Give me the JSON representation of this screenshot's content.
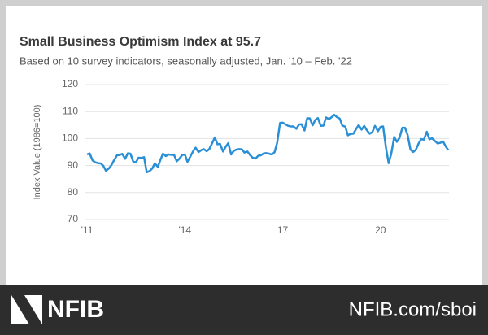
{
  "chart_data": {
    "type": "line",
    "title": "Small Business Optimism Index at 95.7",
    "subtitle": "Based on 10 survey indicators, seasonally adjusted, Jan. '10 – Feb. '22",
    "y_label": "Index Value (1986=100)",
    "color": "#2b8fd6",
    "grid": true,
    "xlim": [
      2011,
      2022.1
    ],
    "ylim": [
      70,
      120
    ],
    "yticks": [
      70,
      80,
      90,
      100,
      110,
      120
    ],
    "xticks": [
      {
        "value": 2011,
        "label": "'11"
      },
      {
        "value": 2014,
        "label": "'14"
      },
      {
        "value": 2017,
        "label": "17"
      },
      {
        "value": 2020,
        "label": "20"
      }
    ],
    "x": [
      2011,
      2011.08,
      2011.17,
      2011.25,
      2011.33,
      2011.42,
      2011.5,
      2011.58,
      2011.67,
      2011.75,
      2011.83,
      2011.92,
      2012,
      2012.08,
      2012.17,
      2012.25,
      2012.33,
      2012.42,
      2012.5,
      2012.58,
      2012.67,
      2012.75,
      2012.83,
      2012.92,
      2013,
      2013.08,
      2013.17,
      2013.25,
      2013.33,
      2013.42,
      2013.5,
      2013.58,
      2013.67,
      2013.75,
      2013.83,
      2013.92,
      2014,
      2014.08,
      2014.17,
      2014.25,
      2014.33,
      2014.42,
      2014.5,
      2014.58,
      2014.67,
      2014.75,
      2014.83,
      2014.92,
      2015,
      2015.08,
      2015.17,
      2015.25,
      2015.33,
      2015.42,
      2015.5,
      2015.58,
      2015.67,
      2015.75,
      2015.83,
      2015.92,
      2016,
      2016.08,
      2016.17,
      2016.25,
      2016.33,
      2016.42,
      2016.5,
      2016.58,
      2016.67,
      2016.75,
      2016.83,
      2016.92,
      2017,
      2017.08,
      2017.17,
      2017.25,
      2017.33,
      2017.42,
      2017.5,
      2017.58,
      2017.67,
      2017.75,
      2017.83,
      2017.92,
      2018,
      2018.08,
      2018.17,
      2018.25,
      2018.33,
      2018.42,
      2018.5,
      2018.58,
      2018.67,
      2018.75,
      2018.83,
      2018.92,
      2019,
      2019.08,
      2019.17,
      2019.25,
      2019.33,
      2019.42,
      2019.5,
      2019.58,
      2019.67,
      2019.75,
      2019.83,
      2019.92,
      2020,
      2020.08,
      2020.17,
      2020.25,
      2020.33,
      2020.42,
      2020.5,
      2020.58,
      2020.67,
      2020.75,
      2020.83,
      2020.92,
      2021,
      2021.08,
      2021.17,
      2021.25,
      2021.33,
      2021.42,
      2021.5,
      2021.58,
      2021.67,
      2021.75,
      2021.83,
      2021.92,
      2022,
      2022.08
    ],
    "values": [
      94.1,
      94.5,
      91.9,
      91.2,
      90.9,
      90.8,
      89.9,
      88.1,
      88.9,
      90.2,
      92.0,
      93.8,
      93.9,
      94.3,
      92.5,
      94.5,
      94.4,
      91.4,
      91.2,
      92.9,
      92.8,
      93.1,
      87.5,
      88.0,
      88.9,
      90.8,
      89.5,
      92.1,
      94.4,
      93.5,
      94.1,
      94.0,
      93.9,
      91.6,
      92.5,
      93.9,
      94.1,
      91.4,
      93.4,
      95.2,
      96.6,
      95.0,
      95.7,
      96.1,
      95.3,
      96.1,
      98.1,
      100.4,
      97.9,
      98.0,
      95.2,
      96.9,
      98.3,
      94.1,
      95.4,
      95.9,
      96.1,
      96.0,
      94.8,
      95.2,
      93.9,
      92.9,
      92.6,
      93.6,
      93.8,
      94.5,
      94.6,
      94.4,
      94.1,
      94.9,
      98.4,
      105.8,
      105.9,
      105.3,
      104.7,
      104.5,
      104.5,
      103.6,
      105.2,
      105.3,
      103.0,
      107.5,
      107.5,
      104.9,
      106.9,
      107.6,
      104.7,
      104.8,
      107.8,
      107.2,
      107.9,
      108.8,
      107.9,
      107.4,
      104.8,
      104.4,
      101.2,
      101.7,
      101.8,
      103.5,
      105.0,
      103.3,
      104.7,
      103.1,
      101.8,
      102.4,
      104.7,
      102.7,
      104.3,
      104.5,
      96.4,
      90.9,
      94.4,
      100.6,
      98.8,
      100.2,
      104.0,
      104.0,
      101.4,
      95.9,
      95.0,
      95.8,
      98.2,
      99.8,
      99.6,
      102.5,
      99.7,
      100.1,
      99.1,
      98.2,
      98.4,
      98.9,
      97.1,
      95.7
    ]
  },
  "footer": {
    "logo": "NFIB",
    "url": "NFIB.com/sboi"
  }
}
